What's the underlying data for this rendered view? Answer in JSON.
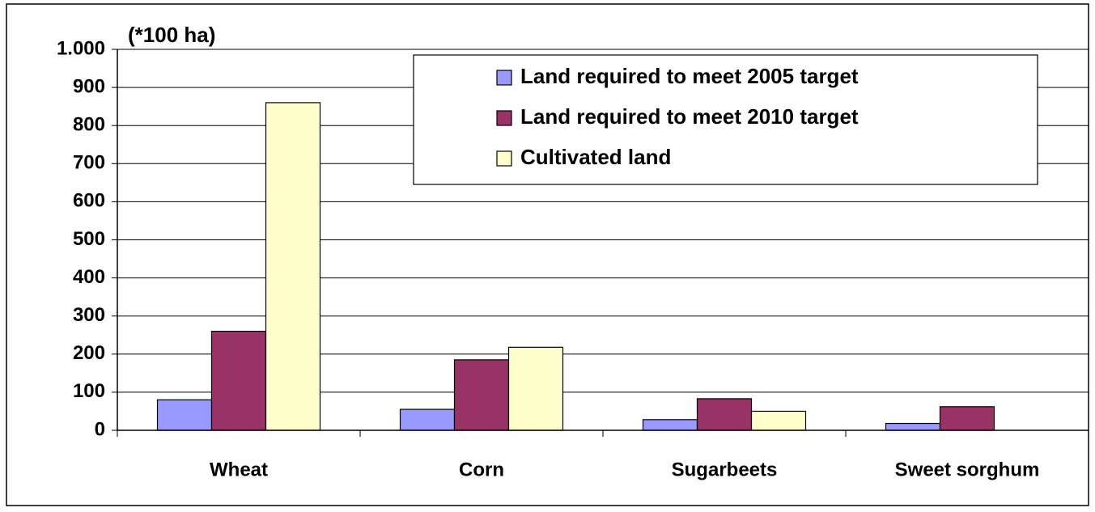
{
  "chart_data": {
    "type": "bar",
    "y_label": "(*100 ha)",
    "categories": [
      "Wheat",
      "Corn",
      "Sugarbeets",
      "Sweet sorghum"
    ],
    "series": [
      {
        "name": "Land required to meet 2005 target",
        "color": "#9999ff",
        "values": [
          80,
          55,
          28,
          18
        ]
      },
      {
        "name": "Land required to meet 2010 target",
        "color": "#993366",
        "values": [
          260,
          185,
          83,
          62
        ]
      },
      {
        "name": "Cultivated land",
        "color": "#ffffcc",
        "values": [
          860,
          218,
          50,
          0
        ]
      }
    ],
    "ylim": [
      0,
      1000
    ],
    "yticks": [
      0,
      100,
      200,
      300,
      400,
      500,
      600,
      700,
      800,
      900,
      {
        "value": 1000,
        "label": "1.000"
      }
    ],
    "grid": true,
    "legend": "top-right"
  }
}
